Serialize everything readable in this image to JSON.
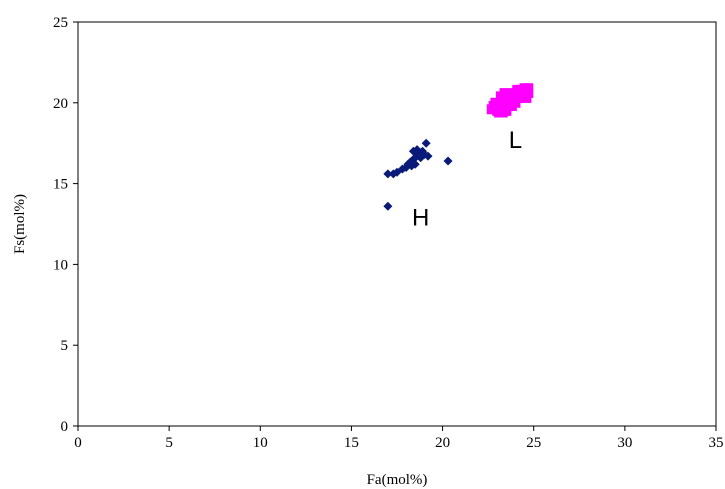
{
  "chart_data": {
    "type": "scatter",
    "xlabel": "Fa(mol%)",
    "ylabel": "Fs(mol%)",
    "xlim": [
      0,
      35
    ],
    "ylim": [
      0,
      25
    ],
    "xticks": [
      0,
      5,
      10,
      15,
      20,
      25,
      30,
      35
    ],
    "yticks": [
      0,
      5,
      10,
      15,
      20,
      25
    ],
    "xtick_labels": [
      "0",
      "5",
      "10",
      "15",
      "20",
      "25",
      "30",
      "35"
    ],
    "ytick_labels": [
      "0",
      "5",
      "10",
      "15",
      "20",
      "25"
    ],
    "grid": false,
    "series": [
      {
        "color": "#0a1a78",
        "marker": "diamond",
        "x": [
          17.0,
          17.0,
          17.3,
          17.5,
          17.8,
          18.0,
          18.1,
          18.2,
          18.3,
          18.4,
          18.5,
          18.6,
          18.7,
          18.8,
          18.9,
          18.4,
          18.6,
          18.8,
          19.0,
          19.1,
          18.5,
          18.3,
          19.2,
          20.3
        ],
        "y": [
          13.6,
          15.6,
          15.6,
          15.7,
          15.9,
          16.0,
          16.2,
          16.3,
          16.4,
          16.5,
          16.6,
          16.8,
          16.7,
          16.9,
          17.0,
          17.0,
          17.1,
          16.6,
          16.8,
          17.5,
          16.2,
          16.1,
          16.7,
          16.4
        ]
      },
      {
        "color": "#ff00ff",
        "marker": "square",
        "x": [
          22.7,
          22.8,
          23.0,
          23.1,
          23.2,
          23.3,
          23.4,
          23.5,
          23.6,
          23.7,
          23.8,
          23.9,
          24.0,
          24.1,
          24.2,
          24.3,
          24.4,
          24.5,
          24.6,
          24.7,
          23.2,
          23.4,
          23.6,
          23.9,
          24.1,
          24.3,
          24.5,
          23.1,
          23.3,
          23.5,
          23.0,
          24.6,
          24.7,
          23.8,
          24.0,
          22.9
        ],
        "y": [
          19.6,
          19.8,
          19.5,
          19.9,
          19.6,
          20.1,
          19.7,
          20.3,
          19.9,
          20.4,
          20.2,
          20.6,
          20.0,
          20.7,
          20.3,
          20.8,
          20.5,
          20.9,
          20.6,
          20.9,
          20.4,
          20.6,
          20.2,
          20.1,
          20.8,
          20.5,
          20.8,
          19.4,
          19.4,
          19.5,
          19.8,
          20.3,
          20.6,
          19.8,
          20.4,
          20.0
        ]
      }
    ],
    "annotations": [
      {
        "text": "H",
        "x": 18.8,
        "y": 12.4
      },
      {
        "text": "L",
        "x": 24.0,
        "y": 17.2
      }
    ]
  }
}
